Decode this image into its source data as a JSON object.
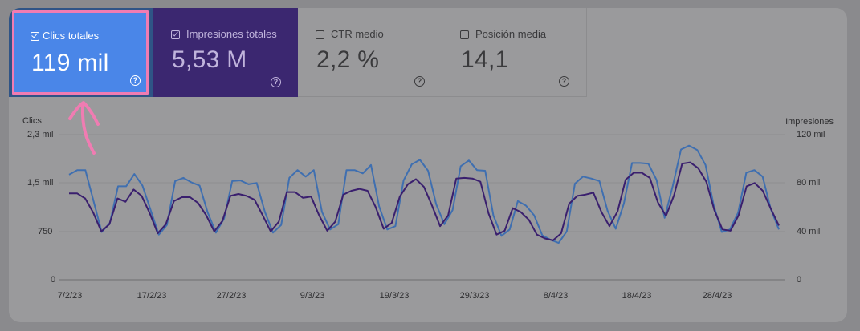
{
  "cards": [
    {
      "label": "Clics totales",
      "value": "119 mil",
      "checked": true
    },
    {
      "label": "Impresiones totales",
      "value": "5,53 M",
      "checked": true
    },
    {
      "label": "CTR medio",
      "value": "2,2 %",
      "checked": false
    },
    {
      "label": "Posición media",
      "value": "14,1",
      "checked": false
    }
  ],
  "help_glyph": "?",
  "colors": {
    "clicks": "#3f6fb0",
    "impressions": "#3a1f6e",
    "highlight": "#f07cb2"
  },
  "chart_data": {
    "type": "line",
    "left_axis": {
      "title": "Clics",
      "ticks": [
        "2,3 mil",
        "1,5 mil",
        "750",
        "0"
      ],
      "ylim": [
        0,
        2250
      ]
    },
    "right_axis": {
      "title": "Impresiones",
      "ticks": [
        "120 mil",
        "80 mil",
        "40 mil",
        "0"
      ],
      "ylim": [
        0,
        120000
      ]
    },
    "x_ticks": [
      "7/2/23",
      "17/2/23",
      "27/2/23",
      "9/3/23",
      "19/3/23",
      "29/3/23",
      "8/4/23",
      "18/4/23",
      "28/4/23"
    ],
    "series": [
      {
        "name": "Clics",
        "axis": "left",
        "values": [
          1630,
          1700,
          1700,
          1220,
          740,
          880,
          1450,
          1450,
          1640,
          1460,
          1080,
          700,
          850,
          1530,
          1580,
          1510,
          1460,
          1040,
          730,
          950,
          1530,
          1540,
          1480,
          1500,
          1050,
          730,
          850,
          1580,
          1700,
          1600,
          1700,
          1050,
          780,
          860,
          1700,
          1700,
          1650,
          1780,
          1140,
          780,
          830,
          1540,
          1790,
          1860,
          1690,
          1170,
          860,
          1080,
          1760,
          1850,
          1700,
          1690,
          1000,
          680,
          780,
          1220,
          1150,
          1000,
          690,
          620,
          570,
          750,
          1490,
          1600,
          1570,
          1530,
          1070,
          790,
          1180,
          1810,
          1810,
          1800,
          1550,
          960,
          1460,
          2020,
          2080,
          2010,
          1780,
          1160,
          740,
          780,
          1040,
          1660,
          1700,
          1600,
          1100,
          780
        ]
      },
      {
        "name": "Impresiones",
        "axis": "left",
        "values": [
          1340,
          1340,
          1260,
          1040,
          750,
          860,
          1260,
          1210,
          1400,
          1300,
          1030,
          720,
          860,
          1220,
          1280,
          1280,
          1190,
          1000,
          750,
          910,
          1300,
          1330,
          1300,
          1240,
          1000,
          750,
          900,
          1360,
          1360,
          1270,
          1290,
          1000,
          760,
          900,
          1320,
          1380,
          1410,
          1380,
          1130,
          790,
          880,
          1290,
          1480,
          1560,
          1440,
          1150,
          830,
          1000,
          1570,
          1580,
          1570,
          1520,
          1030,
          700,
          760,
          1110,
          1050,
          930,
          700,
          640,
          610,
          720,
          1180,
          1300,
          1320,
          1350,
          1050,
          830,
          1060,
          1550,
          1660,
          1660,
          1580,
          1200,
          990,
          1310,
          1800,
          1820,
          1730,
          1520,
          1080,
          780,
          760,
          1000,
          1450,
          1500,
          1380,
          1100,
          840
        ]
      }
    ]
  }
}
